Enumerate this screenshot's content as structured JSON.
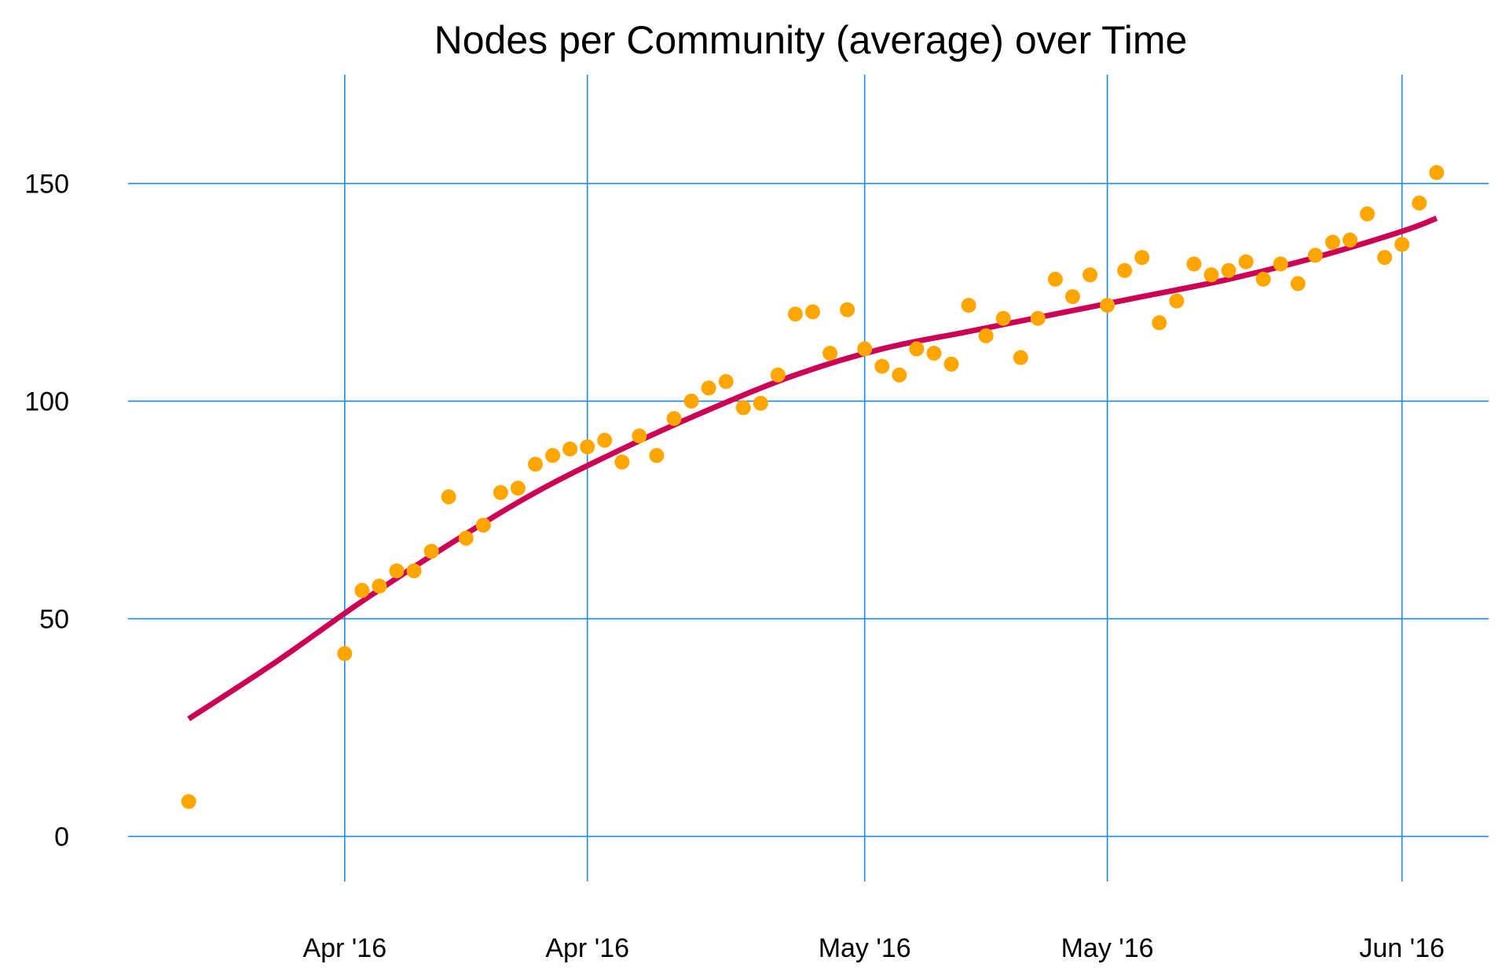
{
  "chart_data": {
    "type": "scatter",
    "title": "Nodes per Community (average) over Time",
    "xlabel": "",
    "ylabel": "",
    "ylim": [
      -10,
      175
    ],
    "y_ticks": [
      {
        "value": 0,
        "label": "0"
      },
      {
        "value": 50,
        "label": "50"
      },
      {
        "value": 100,
        "label": "100"
      },
      {
        "value": 150,
        "label": "150"
      }
    ],
    "x_ticks": [
      {
        "value": 9.0,
        "label": "Apr '16"
      },
      {
        "value": 23.0,
        "label": "Apr '16"
      },
      {
        "value": 39.0,
        "label": "May '16"
      },
      {
        "value": 53.0,
        "label": "May '16"
      },
      {
        "value": 70.0,
        "label": "Jun '16"
      }
    ],
    "xlim": [
      -3.5,
      75.0
    ],
    "x": [
      0,
      9,
      10,
      11,
      12,
      13,
      14,
      15,
      16,
      17,
      18,
      19,
      20,
      21,
      22,
      23,
      24,
      25,
      26,
      27,
      28,
      29,
      30,
      31,
      32,
      33,
      34,
      35,
      36,
      37,
      38,
      39,
      40,
      41,
      42,
      43,
      44,
      45,
      46,
      47,
      48,
      49,
      50,
      51,
      52,
      53,
      54,
      55,
      56,
      57,
      58,
      59,
      60,
      61,
      62,
      63,
      64,
      65,
      66,
      67,
      68,
      69,
      70,
      71,
      72
    ],
    "series": [
      {
        "values": [
          8,
          42,
          56.5,
          57.5,
          61,
          61,
          65.5,
          78,
          68.5,
          71.5,
          79,
          80,
          85.5,
          87.5,
          89,
          89.5,
          91,
          86,
          92,
          87.5,
          96,
          100,
          103,
          104.5,
          98.5,
          99.5,
          106,
          120,
          120.5,
          111,
          121,
          112,
          108,
          106,
          112,
          111,
          108.5,
          122,
          115,
          119,
          110,
          119,
          128,
          124,
          129,
          122,
          130,
          133,
          118,
          123,
          131.5,
          129,
          130,
          132,
          128,
          131.5,
          127,
          133.5,
          136.5,
          137,
          143,
          133,
          136,
          145.5,
          152.5
        ]
      },
      {
        "trend_x": [
          0,
          5,
          10,
          15,
          20,
          25,
          30,
          35,
          40,
          45,
          50,
          55,
          60,
          65,
          70,
          72
        ],
        "trend_y": [
          27,
          40,
          54,
          67,
          79,
          89,
          98,
          106,
          112,
          116,
          120,
          124,
          128,
          133,
          139,
          142
        ]
      }
    ],
    "colors": {
      "points": "#FFA500",
      "trend": "#CC0055",
      "grid": "#1E88E5",
      "text": "#000000"
    },
    "grid": true,
    "legend": "none"
  }
}
